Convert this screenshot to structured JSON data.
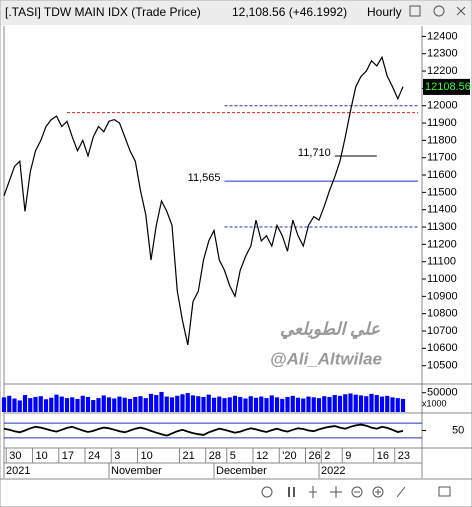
{
  "chart_data": {
    "type": "line",
    "title": "[.TASI] TDW MAIN IDX (Trade Price)",
    "quote": "12,108.56 (+46.1992)",
    "interval": "Hourly",
    "last_price": 12108.56,
    "color": "#000000",
    "values": [
      11480,
      11565,
      11650,
      11680,
      11390,
      11620,
      11740,
      11800,
      11880,
      11920,
      11940,
      11880,
      11910,
      11820,
      11740,
      11800,
      11710,
      11820,
      11880,
      11850,
      11910,
      11920,
      11900,
      11820,
      11740,
      11680,
      11510,
      11370,
      11110,
      11310,
      11450,
      11390,
      11310,
      10930,
      10760,
      10620,
      10870,
      10930,
      11110,
      11220,
      11280,
      11110,
      11050,
      10960,
      10900,
      11050,
      11130,
      11190,
      11340,
      11220,
      11250,
      11190,
      11310,
      11250,
      11160,
      11340,
      11250,
      11190,
      11310,
      11360,
      11340,
      11420,
      11510,
      11590,
      11680,
      11820,
      11970,
      12110,
      12170,
      12200,
      12260,
      12230,
      12280,
      12170,
      12110,
      12040,
      12110
    ],
    "xlim": [
      0,
      76
    ],
    "ylim": [
      10400,
      12460
    ],
    "yticks": [
      10500,
      10600,
      10700,
      10800,
      10900,
      11000,
      11100,
      11200,
      11300,
      11400,
      11500,
      11600,
      11700,
      11800,
      11900,
      12000,
      12100,
      12200,
      12300,
      12400
    ],
    "xticks": [
      {
        "value": 1,
        "label": "30"
      },
      {
        "value": 6,
        "label": "10"
      },
      {
        "value": 11,
        "label": "17"
      },
      {
        "value": 16,
        "label": "24"
      },
      {
        "value": 21,
        "label": "3"
      },
      {
        "value": 26,
        "label": "10"
      },
      {
        "value": 34,
        "label": "21"
      },
      {
        "value": 39,
        "label": "28"
      },
      {
        "value": 43,
        "label": "5"
      },
      {
        "value": 48,
        "label": "12"
      },
      {
        "value": 53,
        "label": "'20"
      },
      {
        "value": 58,
        "label": "26"
      },
      {
        "value": 61,
        "label": "2"
      },
      {
        "value": 65,
        "label": "9"
      },
      {
        "value": 71,
        "label": "16"
      },
      {
        "value": 75,
        "label": "23"
      }
    ],
    "period_ticks": [
      {
        "value": 0,
        "label": "2021"
      },
      {
        "value": 20,
        "label": "November"
      },
      {
        "value": 40,
        "label": "December"
      },
      {
        "value": 60,
        "label": "2022"
      }
    ],
    "levels": [
      {
        "value": 11960,
        "from": 12,
        "color": "#e02020",
        "style": "dashed"
      },
      {
        "value": 12000,
        "from": 42,
        "color": "#2030c0",
        "style": "dashed"
      },
      {
        "value": 11710,
        "from": 63,
        "to": 71,
        "color": "#000000",
        "style": "solid",
        "label": "11,710"
      },
      {
        "value": 11565,
        "from": 42,
        "color": "#2030c0",
        "style": "solid",
        "label": "11,565"
      },
      {
        "value": 11300,
        "from": 42,
        "color": "#2030c0",
        "style": "dashed"
      }
    ],
    "watermark": [
      "علي الطويلعي",
      "@Ali_Altwilae"
    ],
    "volume": {
      "color": "#0000ff",
      "unit": "x1000",
      "ylim": [
        0,
        70000
      ],
      "yticks": [
        50000
      ],
      "values": [
        38000,
        42000,
        35000,
        30000,
        44000,
        36000,
        39000,
        41000,
        33000,
        37000,
        45000,
        40000,
        36000,
        38000,
        34000,
        42000,
        39000,
        31000,
        36000,
        43000,
        38000,
        35000,
        40000,
        37000,
        34000,
        39000,
        41000,
        36000,
        47000,
        44000,
        52000,
        40000,
        38000,
        42000,
        46000,
        49000,
        43000,
        41000,
        39000,
        45000,
        37000,
        40000,
        36000,
        38000,
        42000,
        39000,
        35000,
        41000,
        37000,
        40000,
        36000,
        43000,
        38000,
        34000,
        39000,
        42000,
        37000,
        35000,
        40000,
        38000,
        36000,
        41000,
        39000,
        44000,
        42000,
        46000,
        48000,
        45000,
        43000,
        41000,
        47000,
        44000,
        40000,
        42000,
        38000,
        36000,
        34000
      ]
    },
    "oscillator": {
      "color": "#000000",
      "ylim": [
        5,
        95
      ],
      "yticks": [
        50
      ],
      "levels": [
        70,
        30
      ],
      "values": [
        55,
        52,
        48,
        45,
        50,
        56,
        60,
        58,
        54,
        50,
        47,
        52,
        57,
        60,
        55,
        50,
        46,
        49,
        54,
        58,
        56,
        52,
        48,
        45,
        50,
        55,
        58,
        54,
        49,
        44,
        40,
        36,
        42,
        48,
        52,
        47,
        43,
        40,
        38,
        45,
        50,
        55,
        52,
        48,
        44,
        47,
        52,
        56,
        53,
        49,
        46,
        51,
        55,
        50,
        47,
        52,
        56,
        54,
        50,
        48,
        53,
        57,
        60,
        62,
        58,
        55,
        60,
        64,
        66,
        63,
        58,
        55,
        60,
        57,
        52,
        46,
        49
      ]
    }
  }
}
